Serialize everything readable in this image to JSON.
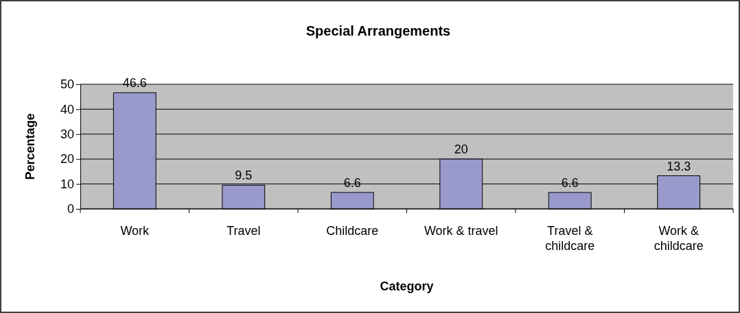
{
  "chart_data": {
    "type": "bar",
    "title": "Special Arrangements",
    "xlabel": "Category",
    "ylabel": "Percentage",
    "categories": [
      "Work",
      "Travel",
      "Childcare",
      "Work & travel",
      "Travel & childcare",
      "Work & childcare"
    ],
    "values": [
      46.6,
      9.5,
      6.6,
      20,
      6.6,
      13.3
    ],
    "color": "#9999cc",
    "ylim": [
      0,
      50
    ],
    "yticks": [
      0,
      10,
      20,
      30,
      40,
      50
    ],
    "grid": "y",
    "data_labels": true
  }
}
